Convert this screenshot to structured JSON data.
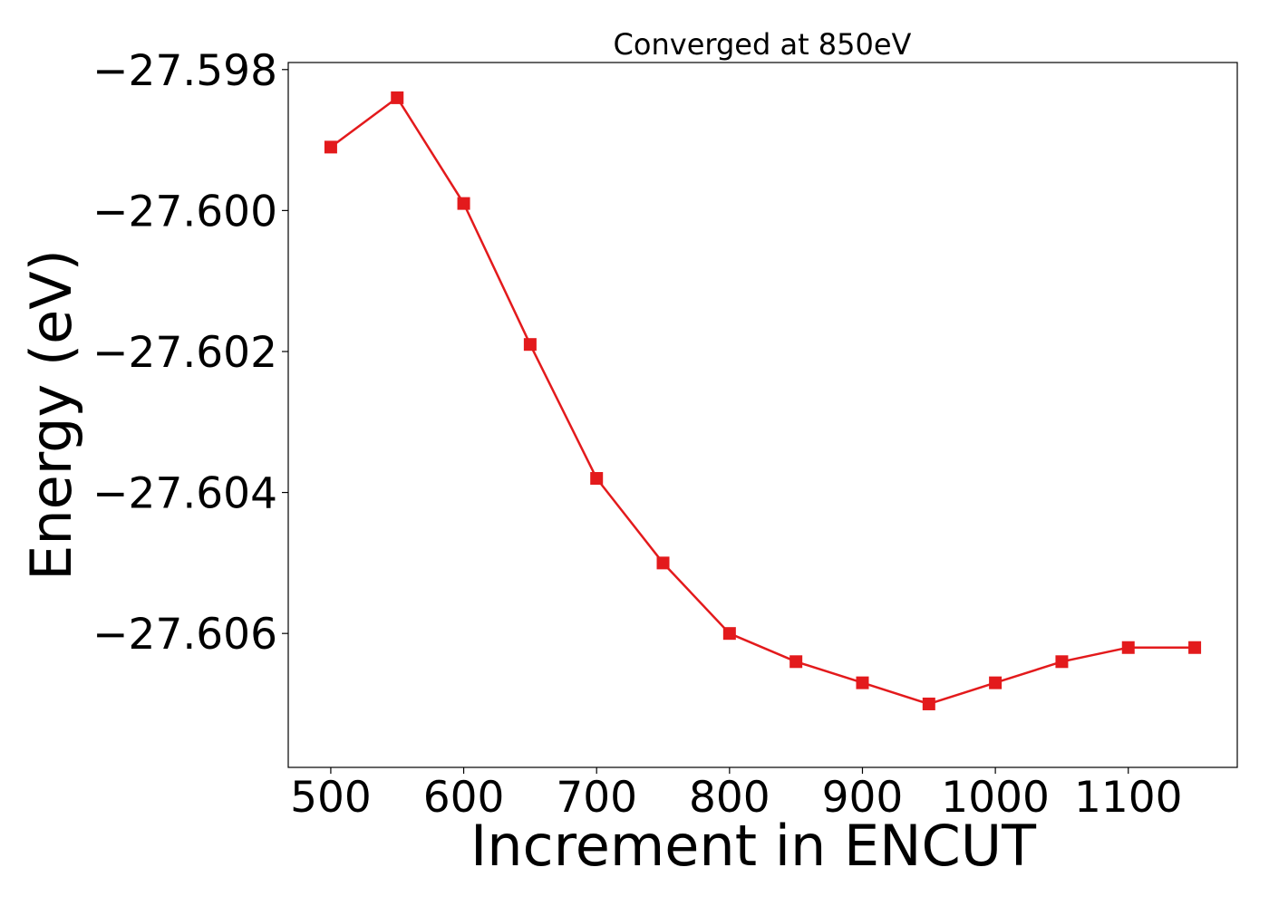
{
  "chart_data": {
    "type": "line",
    "title": "Converged at 850eV",
    "xlabel": "Increment in ENCUT",
    "ylabel": "Energy (eV)",
    "xlim": [
      468,
      1182
    ],
    "ylim": [
      -27.6079,
      -27.5979
    ],
    "xticks": [
      500,
      600,
      700,
      800,
      900,
      1000,
      1100
    ],
    "xtick_labels": [
      "500",
      "600",
      "700",
      "800",
      "900",
      "1000",
      "1100"
    ],
    "yticks": [
      -27.598,
      -27.6,
      -27.602,
      -27.604,
      -27.606
    ],
    "ytick_labels": [
      "−27.598",
      "−27.600",
      "−27.602",
      "−27.604",
      "−27.606"
    ],
    "grid": false,
    "marker": "square",
    "series": [
      {
        "color": "#e31a1c",
        "x": [
          500,
          550,
          600,
          650,
          700,
          750,
          800,
          850,
          900,
          950,
          1000,
          1050,
          1100,
          1150
        ],
        "y": [
          -27.5991,
          -27.5984,
          -27.5999,
          -27.6019,
          -27.6038,
          -27.605,
          -27.606,
          -27.6064,
          -27.6067,
          -27.607,
          -27.6067,
          -27.6064,
          -27.6062,
          -27.6062
        ]
      }
    ]
  }
}
